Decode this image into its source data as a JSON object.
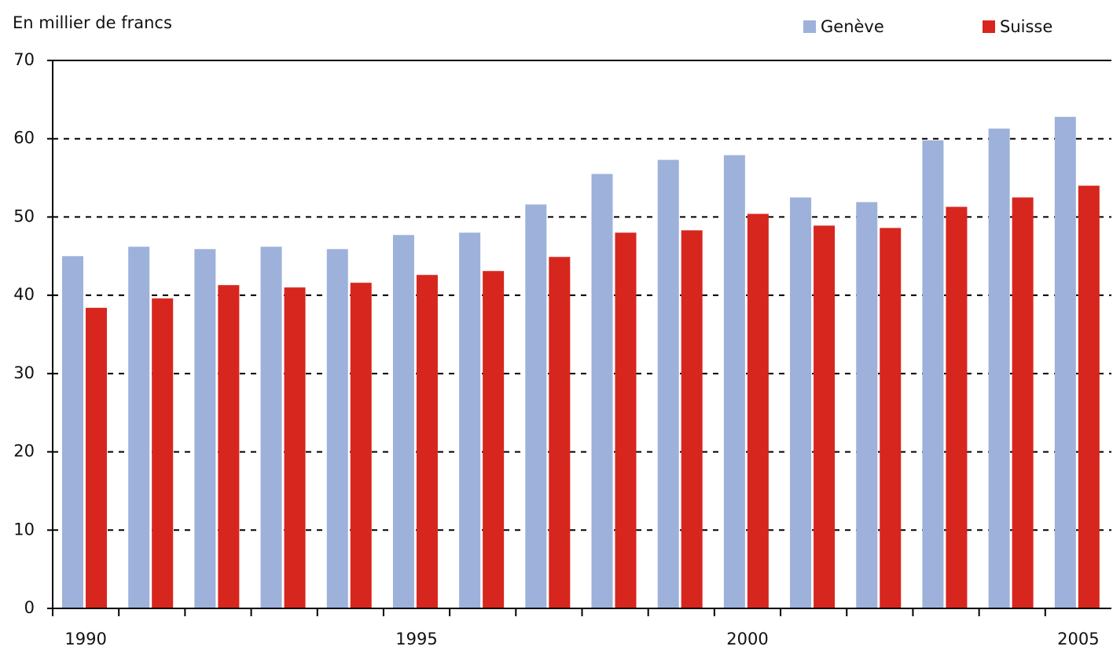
{
  "chart_data": {
    "type": "bar",
    "y_axis_label": "En millier de francs",
    "categories": [
      "1990",
      null,
      null,
      null,
      null,
      "1995",
      null,
      null,
      null,
      null,
      "2000",
      null,
      null,
      null,
      null,
      "2005"
    ],
    "series": [
      {
        "name": "Genève",
        "color": "#9db1da",
        "values": [
          45.0,
          46.2,
          45.9,
          46.2,
          45.9,
          47.7,
          48.0,
          51.6,
          55.5,
          57.3,
          57.9,
          52.5,
          51.9,
          59.8,
          61.3,
          62.8
        ]
      },
      {
        "name": "Suisse",
        "color": "#d7261e",
        "values": [
          38.4,
          39.6,
          41.3,
          41.0,
          41.6,
          42.6,
          43.1,
          44.9,
          48.0,
          48.3,
          50.4,
          48.9,
          48.6,
          51.3,
          52.5,
          54.0
        ]
      }
    ],
    "ylim": [
      0,
      70
    ],
    "yticks": [
      0,
      10,
      20,
      30,
      40,
      50,
      60,
      70
    ],
    "grid": true,
    "legend": "top-right"
  }
}
